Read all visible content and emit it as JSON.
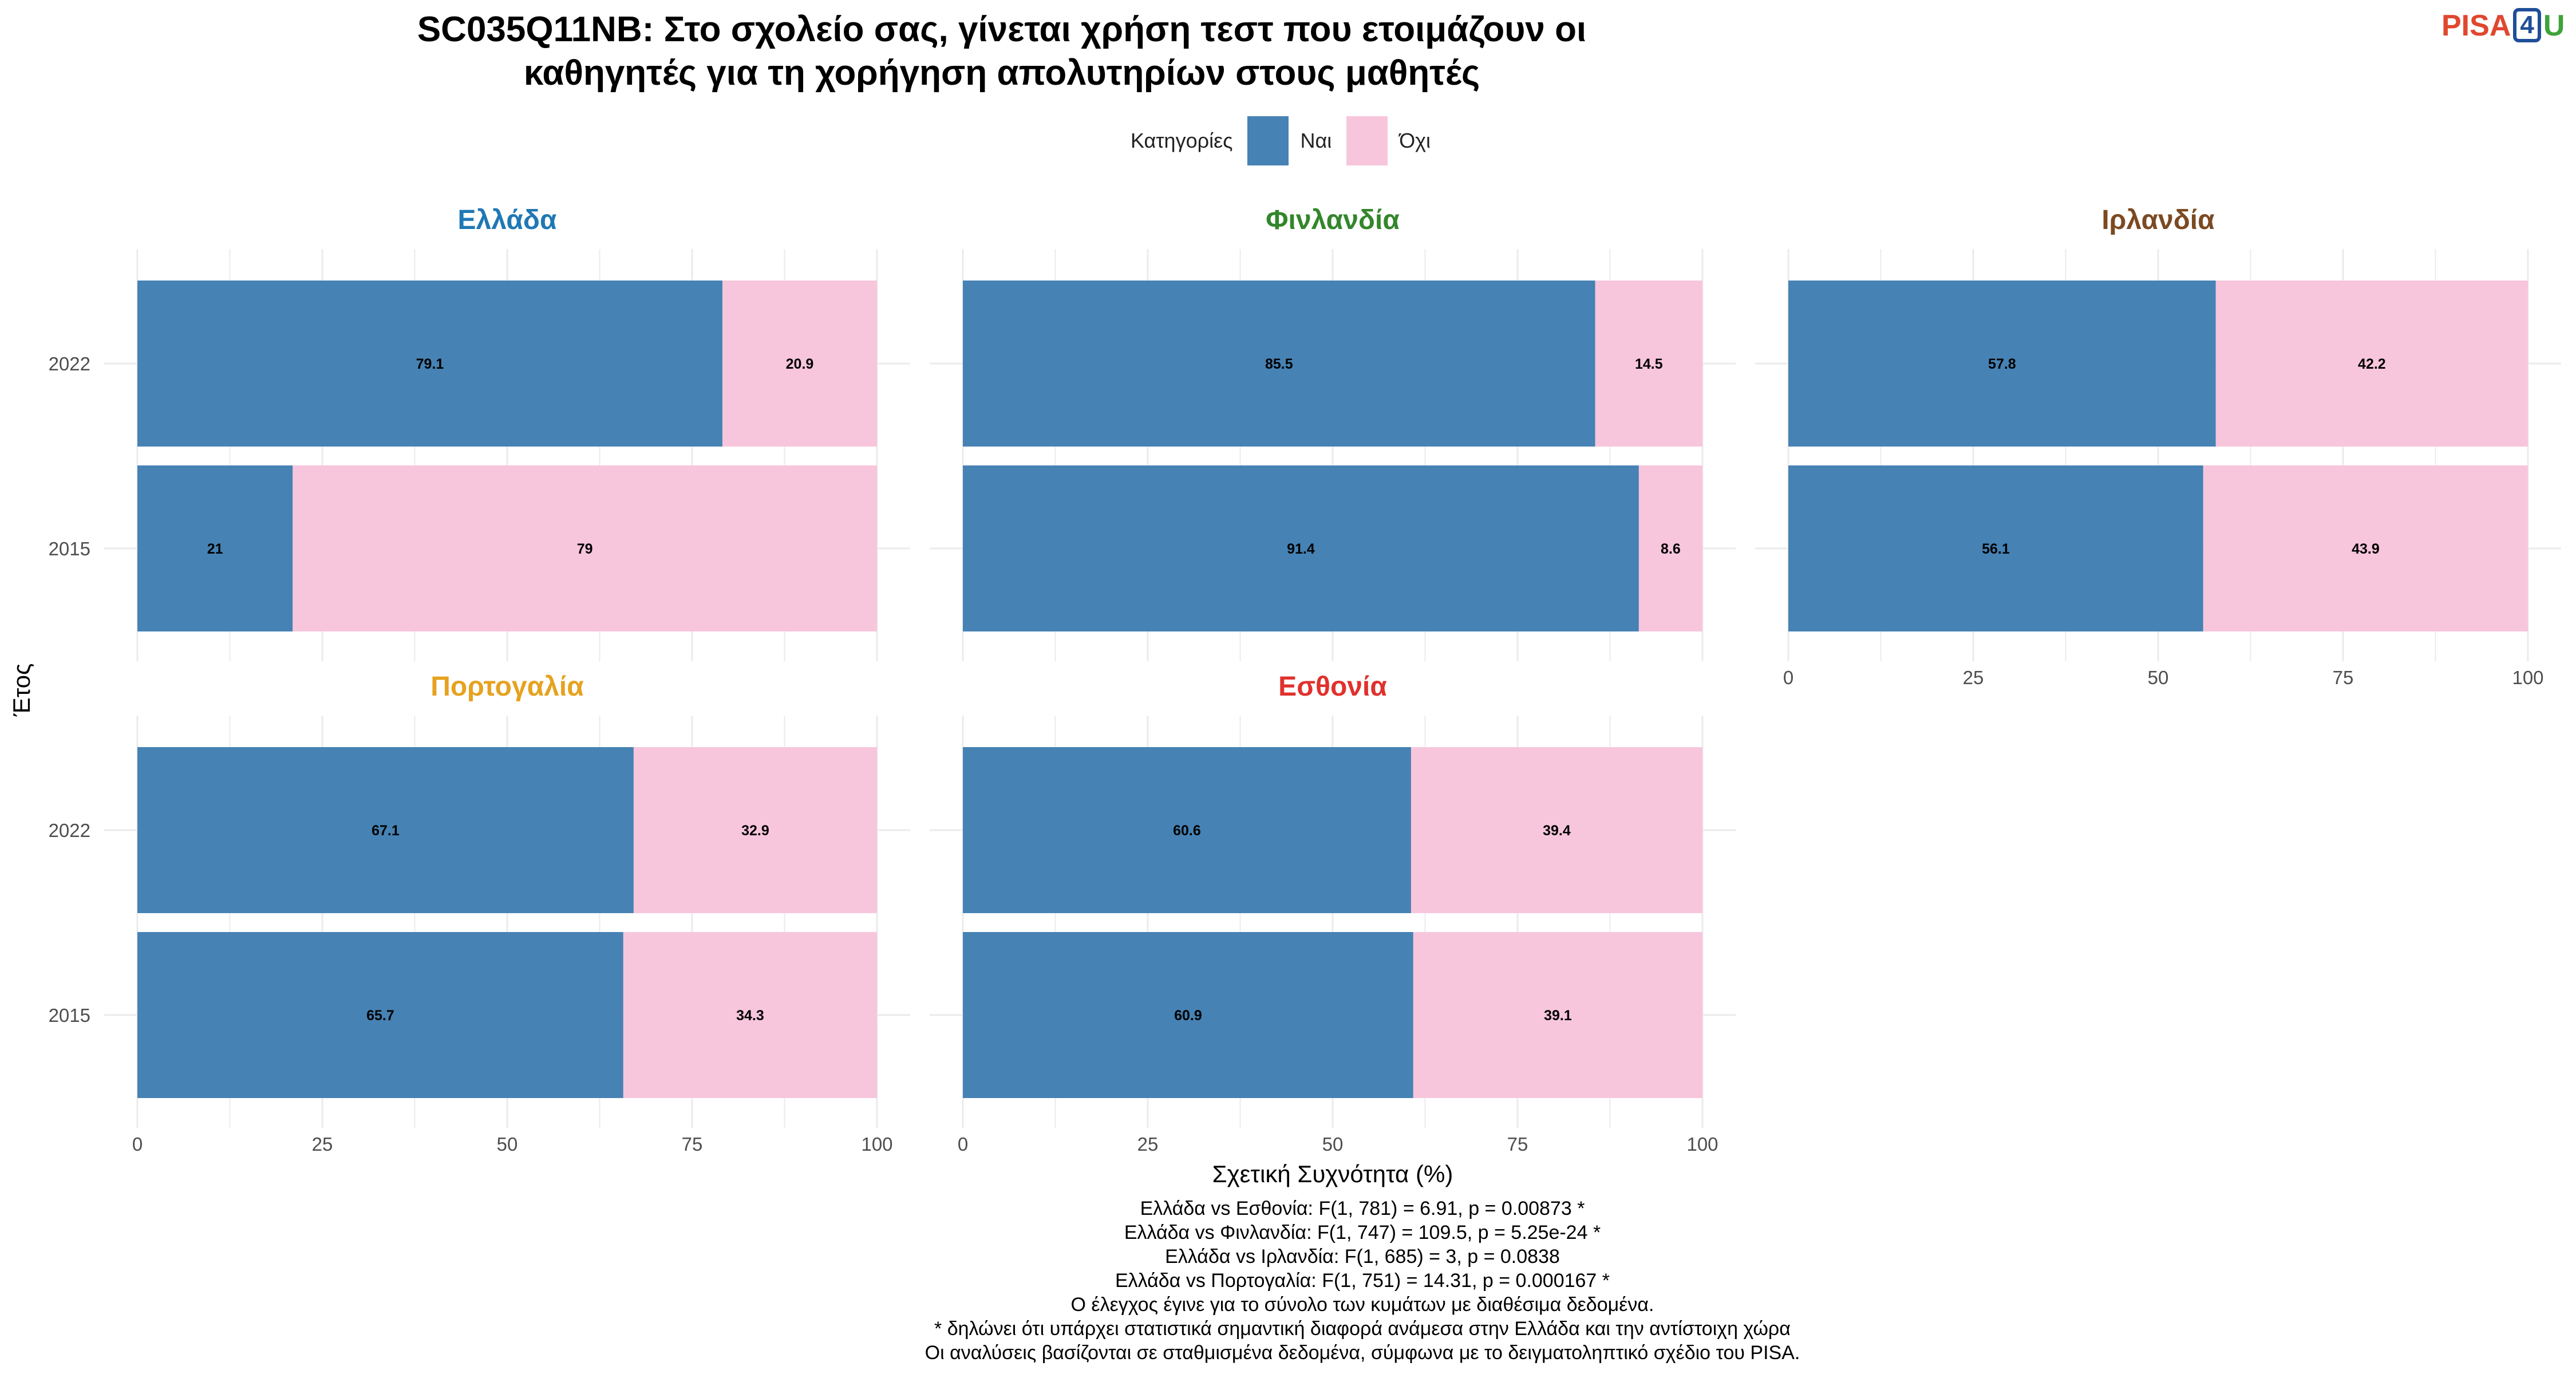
{
  "title": {
    "line1": "SC035Q11NB: Στο σχολείο σας, γίνεται χρήση τεστ που ετοιμάζουν οι",
    "line2": "καθηγητές για τη χορήγηση απολυτηρίων στους μαθητές"
  },
  "logo": {
    "part1": "PISA",
    "part2": "4",
    "part3": "U"
  },
  "legend": {
    "title": "Κατηγορίες",
    "items": [
      {
        "label": "Ναι",
        "color": "#4682b4"
      },
      {
        "label": "Όχι",
        "color": "#f7c6dc"
      }
    ]
  },
  "chart_data": {
    "type": "bar",
    "orientation": "horizontal",
    "stacked": true,
    "xlabel": "Σχετική Συχνότητα (%)",
    "ylabel": "Έτος",
    "xlim": [
      0,
      100
    ],
    "xticks": [
      0,
      25,
      50,
      75,
      100
    ],
    "categories": [
      "2022",
      "2015"
    ],
    "series_names": [
      "Ναι",
      "Όχι"
    ],
    "colors": [
      "#4682b4",
      "#f7c6dc"
    ],
    "grid": true,
    "legend_position": "top",
    "panels": [
      {
        "name": "Ελλάδα",
        "color": "#1f78b4",
        "values": {
          "2022": [
            79.1,
            20.9
          ],
          "2015": [
            21,
            79
          ]
        }
      },
      {
        "name": "Φινλανδία",
        "color": "#33862b",
        "values": {
          "2022": [
            85.5,
            14.5
          ],
          "2015": [
            91.4,
            8.6
          ]
        }
      },
      {
        "name": "Ιρλανδία",
        "color": "#7b4a22",
        "values": {
          "2022": [
            57.8,
            42.2
          ],
          "2015": [
            56.1,
            43.9
          ]
        }
      },
      {
        "name": "Πορτογαλία",
        "color": "#e6a21f",
        "values": {
          "2022": [
            67.1,
            32.9
          ],
          "2015": [
            65.7,
            34.3
          ]
        }
      },
      {
        "name": "Εσθονία",
        "color": "#e0312d",
        "values": {
          "2022": [
            60.6,
            39.4
          ],
          "2015": [
            60.9,
            39.1
          ]
        }
      }
    ]
  },
  "notes": [
    "Ελλάδα vs Εσθονία: F(1, 781) = 6.91, p = 0.00873 *",
    "Ελλάδα vs Φινλανδία: F(1, 747) = 109.5, p = 5.25e-24 *",
    "Ελλάδα vs Ιρλανδία: F(1, 685) = 3, p = 0.0838",
    "Ελλάδα vs Πορτογαλία: F(1, 751) = 14.31, p = 0.000167 *",
    "Ο έλεγχος έγινε για το σύνολο των κυμάτων με διαθέσιμα δεδομένα.",
    "* δηλώνει ότι υπάρχει στατιστικά σημαντική διαφορά ανάμεσα στην Ελλάδα και την αντίστοιχη χώρα",
    "Οι αναλύσεις βασίζονται σε σταθμισμένα δεδομένα, σύμφωνα με το δειγματοληπτικό σχέδιο του PISA."
  ]
}
